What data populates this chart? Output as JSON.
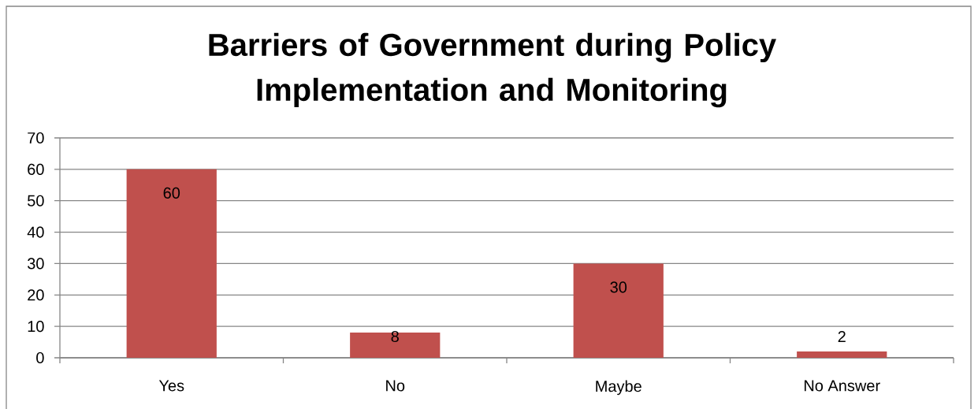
{
  "chart_data": {
    "type": "bar",
    "title": "Barriers of Government during Policy Implementation and Monitoring",
    "categories": [
      "Yes",
      "No",
      "Maybe",
      "No Answer"
    ],
    "values": [
      60,
      8,
      30,
      2
    ],
    "color": "#c0504d",
    "ylim": [
      0,
      70
    ],
    "yticks": [
      0,
      10,
      20,
      30,
      40,
      50,
      60,
      70
    ],
    "grid": "y",
    "data_labels": true
  }
}
